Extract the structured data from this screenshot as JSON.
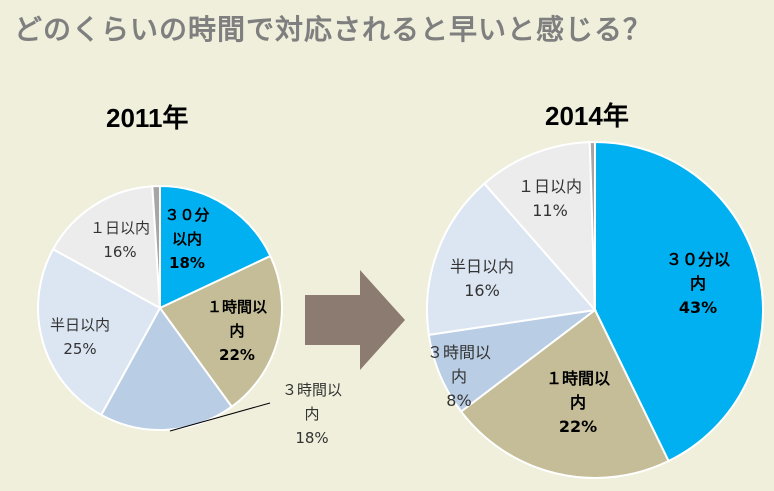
{
  "title": "どのくらいの時間で対応されると早いと感じる？",
  "colors": {
    "background": "#efefdc",
    "within_30min": "#00b0f0",
    "within_1h": "#c4bd97",
    "within_3h": "#b9cde5",
    "within_half_day": "#dce6f2",
    "within_1day": "#ececec",
    "other": "#a6a6a6",
    "arrow": "#8c7b70"
  },
  "chart_data": [
    {
      "type": "pie",
      "title": "2011年",
      "slices": [
        {
          "label": "３０分以内",
          "value": 18,
          "value_label": "18%",
          "color": "#00b0f0",
          "bold": true
        },
        {
          "label": "１時間以内",
          "value": 22,
          "value_label": "22%",
          "color": "#c4bd97",
          "bold": true
        },
        {
          "label": "３時間以内",
          "value": 18,
          "value_label": "18%",
          "color": "#b9cde5",
          "bold": false
        },
        {
          "label": "半日以内",
          "value": 25,
          "value_label": "25%",
          "color": "#dce6f2",
          "bold": false
        },
        {
          "label": "１日以内",
          "value": 16,
          "value_label": "16%",
          "color": "#ececec",
          "bold": false
        },
        {
          "label": "",
          "value": 1,
          "value_label": "",
          "color": "#a6a6a6",
          "bold": false
        }
      ]
    },
    {
      "type": "pie",
      "title": "2014年",
      "slices": [
        {
          "label": "３０分以内",
          "value": 43,
          "value_label": "43%",
          "color": "#00b0f0",
          "bold": true
        },
        {
          "label": "１時間以内",
          "value": 22,
          "value_label": "22%",
          "color": "#c4bd97",
          "bold": true
        },
        {
          "label": "３時間以内",
          "value": 8,
          "value_label": "8%",
          "color": "#b9cde5",
          "bold": false
        },
        {
          "label": "半日以内",
          "value": 16,
          "value_label": "16%",
          "color": "#dce6f2",
          "bold": false
        },
        {
          "label": "１日以内",
          "value": 11,
          "value_label": "11%",
          "color": "#ececec",
          "bold": false
        },
        {
          "label": "",
          "value": 0.5,
          "value_label": "",
          "color": "#a6a6a6",
          "bold": false
        }
      ]
    }
  ]
}
